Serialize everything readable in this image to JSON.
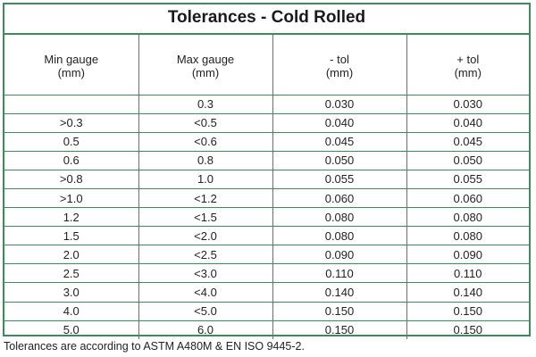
{
  "title": "Tolerances - Cold Rolled",
  "headers": [
    {
      "label": "Min gauge",
      "unit": "(mm)"
    },
    {
      "label": "Max gauge",
      "unit": "(mm)"
    },
    {
      "label": "- tol",
      "unit": "(mm)"
    },
    {
      "label": "+ tol",
      "unit": "(mm)"
    }
  ],
  "rows": [
    [
      "",
      "0.3",
      "0.030",
      "0.030"
    ],
    [
      ">0.3",
      "<0.5",
      "0.040",
      "0.040"
    ],
    [
      "0.5",
      "<0.6",
      "0.045",
      "0.045"
    ],
    [
      "0.6",
      "0.8",
      "0.050",
      "0.050"
    ],
    [
      ">0.8",
      "1.0",
      "0.055",
      "0.055"
    ],
    [
      ">1.0",
      "<1.2",
      "0.060",
      "0.060"
    ],
    [
      "1.2",
      "<1.5",
      "0.080",
      "0.080"
    ],
    [
      "1.5",
      "<2.0",
      "0.080",
      "0.080"
    ],
    [
      "2.0",
      "<2.5",
      "0.090",
      "0.090"
    ],
    [
      "2.5",
      "<3.0",
      "0.110",
      "0.110"
    ],
    [
      "3.0",
      "<4.0",
      "0.140",
      "0.140"
    ],
    [
      "4.0",
      "<5.0",
      "0.150",
      "0.150"
    ],
    [
      "5.0",
      "6.0",
      "0.150",
      "0.150"
    ]
  ],
  "footnote": "Tolerances are according to ASTM A480M & EN ISO 9445-2.",
  "colors": {
    "rule": "#3f8a5c"
  }
}
